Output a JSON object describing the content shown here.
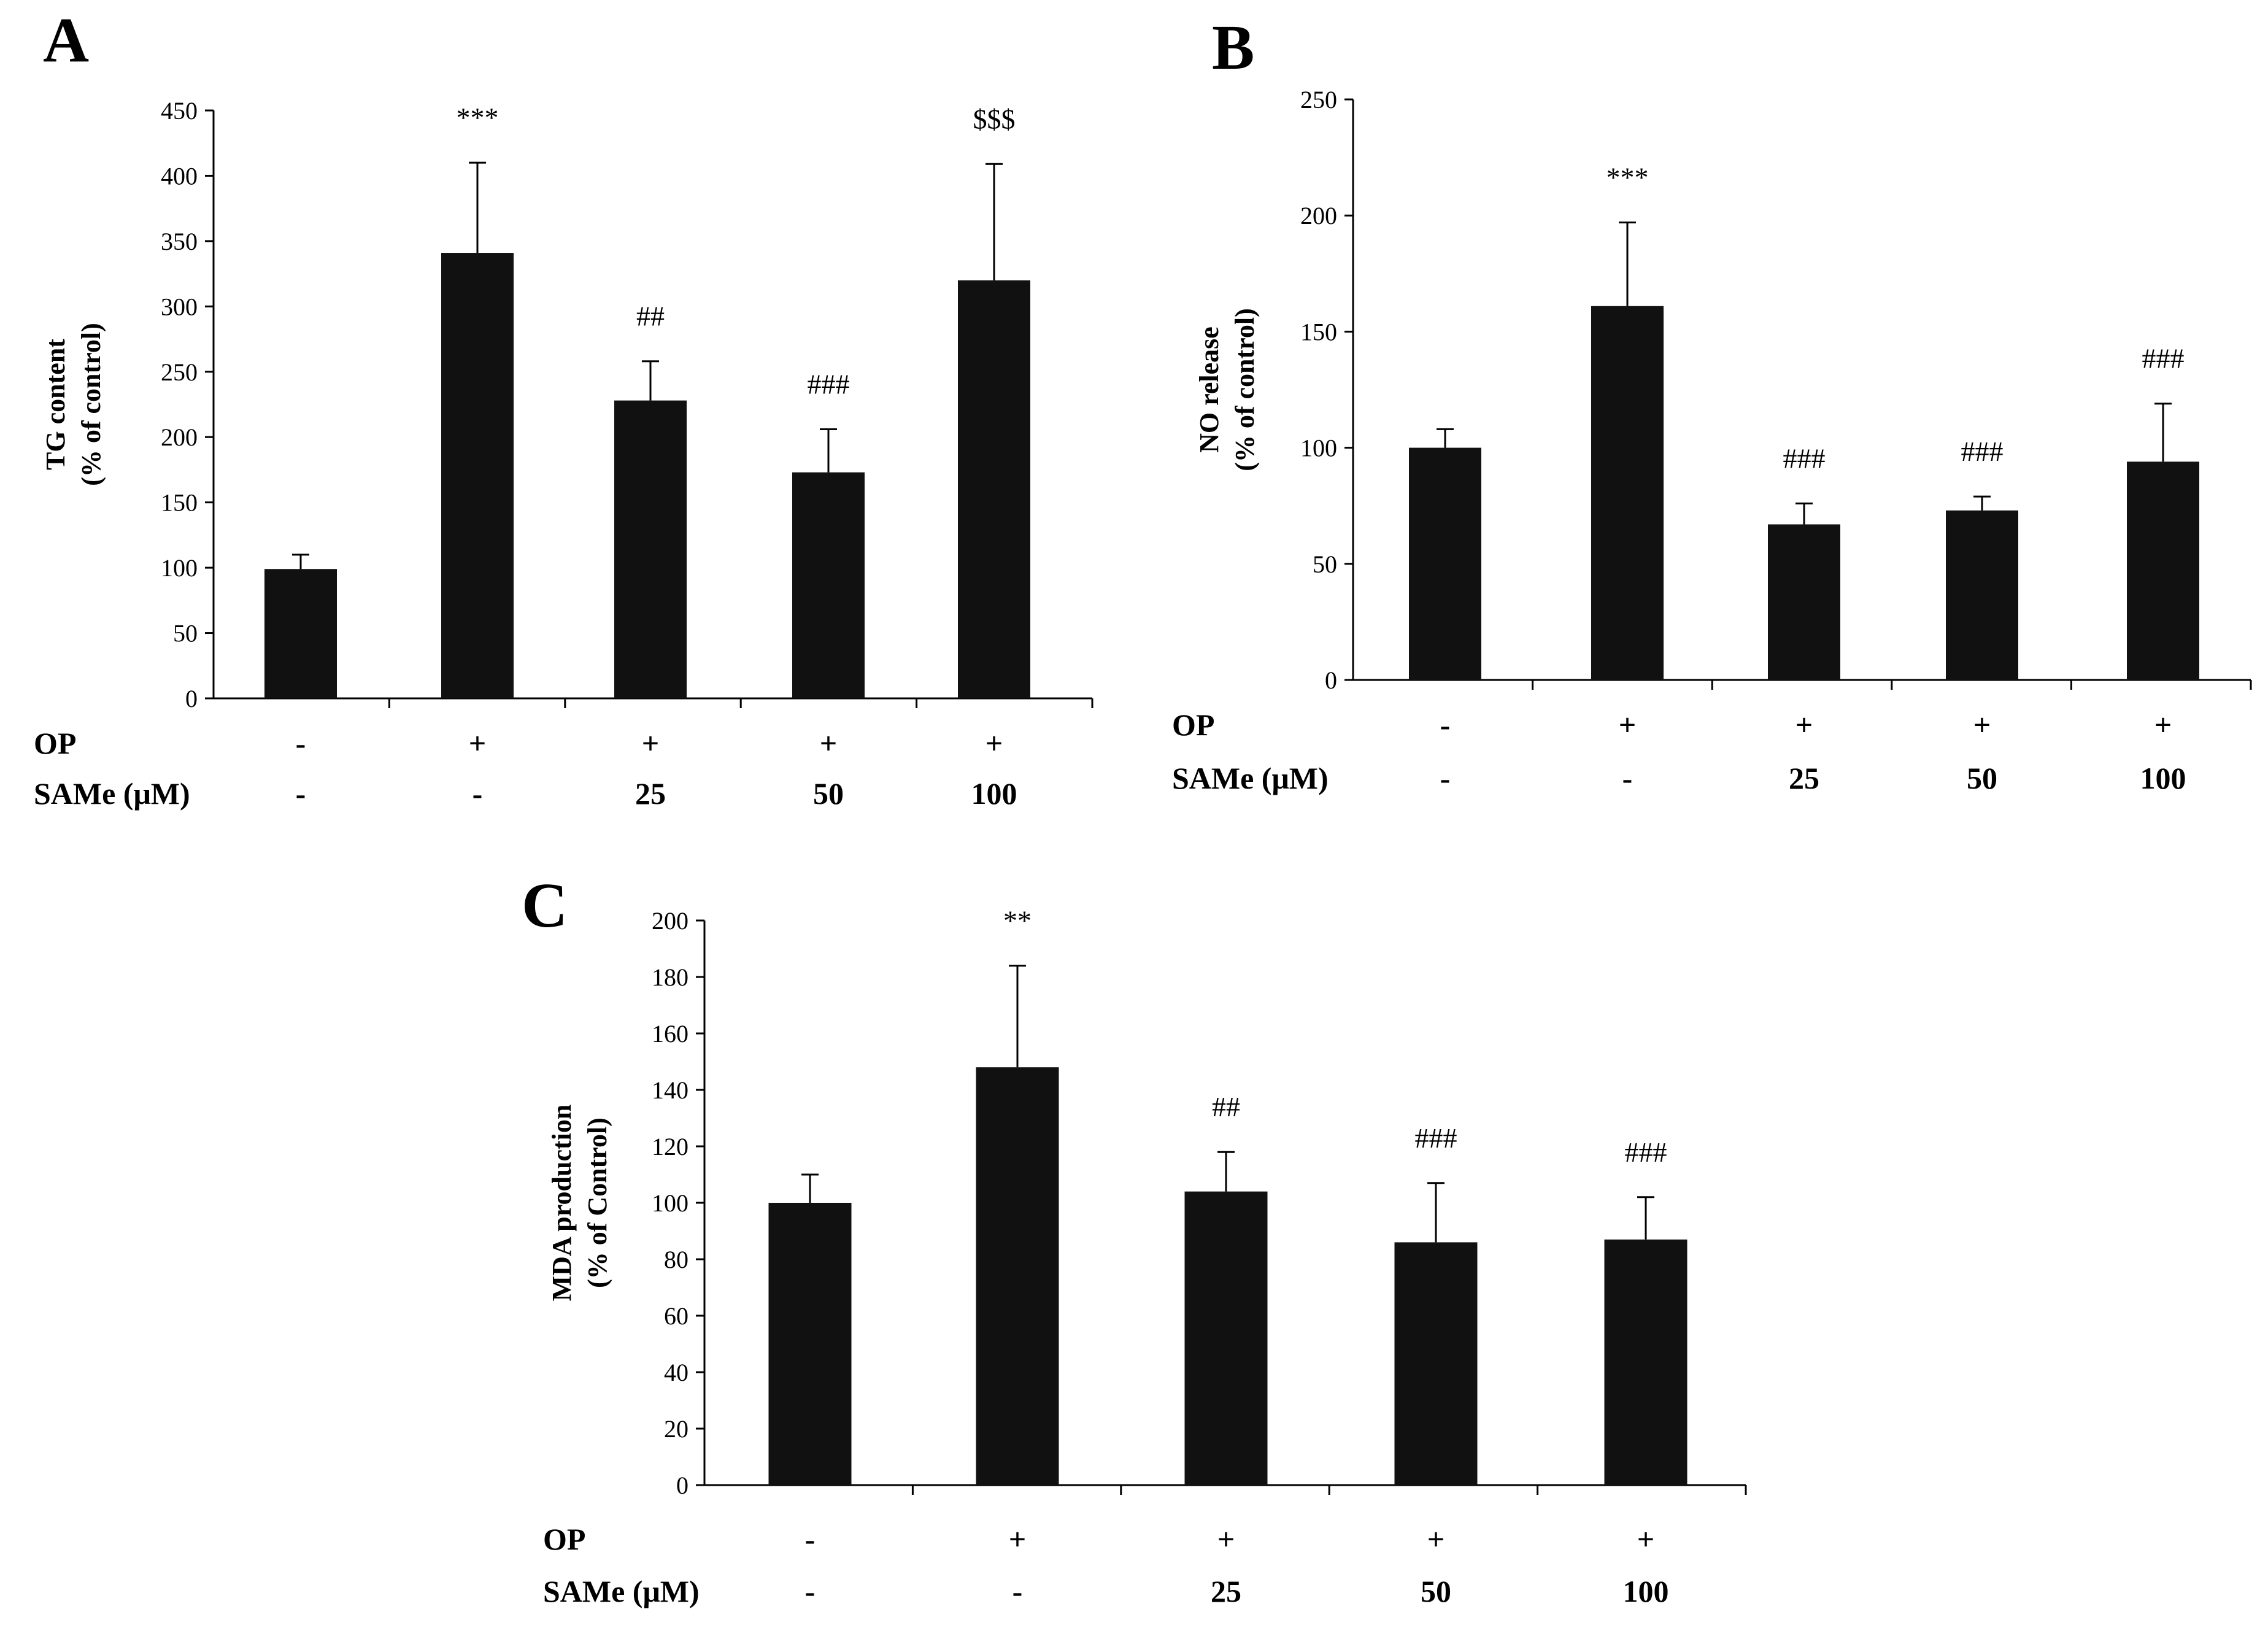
{
  "figure": {
    "condition_labels": {
      "op": "OP",
      "same": "SAMe (μM)"
    }
  },
  "chart_data": [
    {
      "panel": "A",
      "type": "bar",
      "categories": [
        "Control",
        "OP",
        "OP + SAMe 25",
        "OP + SAMe 50",
        "OP + SAMe 100"
      ],
      "op_row": [
        "-",
        "+",
        "+",
        "+",
        "+"
      ],
      "same_row": [
        "-",
        "-",
        "25",
        "50",
        "100"
      ],
      "values": [
        99,
        341,
        228,
        173,
        320
      ],
      "errors": [
        11,
        69,
        30,
        33,
        89
      ],
      "significance": [
        "",
        "***",
        "##",
        "###",
        "$$$"
      ],
      "ylabel_line1": "TG content",
      "ylabel_line2": "(% of control)",
      "ylim": [
        0,
        450
      ],
      "yticks": [
        0,
        50,
        100,
        150,
        200,
        250,
        300,
        350,
        400,
        450
      ],
      "bar_color": "#111111"
    },
    {
      "panel": "B",
      "type": "bar",
      "categories": [
        "Control",
        "OP",
        "OP + SAMe 25",
        "OP + SAMe 50",
        "OP + SAMe 100"
      ],
      "op_row": [
        "-",
        "+",
        "+",
        "+",
        "+"
      ],
      "same_row": [
        "-",
        "-",
        "25",
        "50",
        "100"
      ],
      "values": [
        100,
        161,
        67,
        73,
        94
      ],
      "errors": [
        8,
        36,
        9,
        6,
        25
      ],
      "significance": [
        "",
        "***",
        "###",
        "###",
        "###"
      ],
      "ylabel_line1": "NO release",
      "ylabel_line2": "(% of control)",
      "ylim": [
        0,
        250
      ],
      "yticks": [
        0,
        50,
        100,
        150,
        200,
        250
      ],
      "bar_color": "#111111"
    },
    {
      "panel": "C",
      "type": "bar",
      "categories": [
        "Control",
        "OP",
        "OP + SAMe 25",
        "OP + SAMe 50",
        "OP + SAMe 100"
      ],
      "op_row": [
        "-",
        "+",
        "+",
        "+",
        "+"
      ],
      "same_row": [
        "-",
        "-",
        "25",
        "50",
        "100"
      ],
      "values": [
        100,
        148,
        104,
        86,
        87
      ],
      "errors": [
        10,
        36,
        14,
        21,
        15
      ],
      "significance": [
        "",
        "**",
        "##",
        "###",
        "###"
      ],
      "ylabel_line1": "MDA  production",
      "ylabel_line2": "(% of Control)",
      "ylim": [
        0,
        200
      ],
      "yticks": [
        0,
        20,
        40,
        60,
        80,
        100,
        120,
        140,
        160,
        180,
        200
      ],
      "bar_color": "#111111"
    }
  ]
}
